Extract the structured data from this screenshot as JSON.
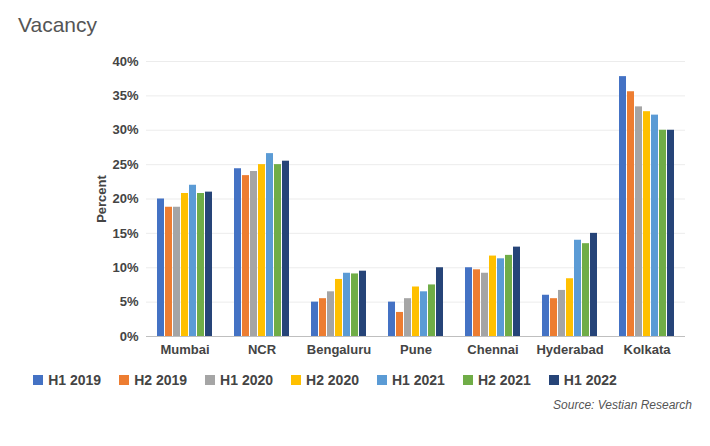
{
  "chart_data": {
    "type": "bar",
    "title": "Vacancy",
    "y_label": "Percent",
    "source": "Source: Vestian Research",
    "categories": [
      "Mumbai",
      "NCR",
      "Bengaluru",
      "Pune",
      "Chennai",
      "Hyderabad",
      "Kolkata"
    ],
    "series": [
      {
        "name": "H1 2019",
        "color": "#4472c4",
        "values": [
          20,
          24.4,
          5,
          5,
          10,
          6,
          37.8
        ]
      },
      {
        "name": "H2 2019",
        "color": "#ed7d31",
        "values": [
          18.8,
          23.4,
          5.5,
          3.5,
          9.7,
          5.5,
          35.6
        ]
      },
      {
        "name": "H1 2020",
        "color": "#a5a5a5",
        "values": [
          18.8,
          24,
          6.5,
          5.5,
          9.2,
          6.7,
          33.4
        ]
      },
      {
        "name": "H2 2020",
        "color": "#ffc000",
        "values": [
          20.8,
          25,
          8.3,
          7.2,
          11.7,
          8.4,
          32.7
        ]
      },
      {
        "name": "H1 2021",
        "color": "#5b9bd5",
        "values": [
          22,
          26.6,
          9.2,
          6.5,
          11.3,
          14,
          32.2
        ]
      },
      {
        "name": "H2 2021",
        "color": "#70ad47",
        "values": [
          20.8,
          25,
          9.1,
          7.5,
          11.8,
          13.5,
          30
        ]
      },
      {
        "name": "H1 2022",
        "color": "#264478",
        "values": [
          21,
          25.5,
          9.5,
          10,
          13,
          15,
          30
        ]
      }
    ],
    "ylim": [
      0,
      40
    ],
    "yticks": [
      {
        "value": 0,
        "label": "0%"
      },
      {
        "value": 5,
        "label": "5%"
      },
      {
        "value": 10,
        "label": "10%"
      },
      {
        "value": 15,
        "label": "15%"
      },
      {
        "value": 20,
        "label": "20%"
      },
      {
        "value": 25,
        "label": "25%"
      },
      {
        "value": 30,
        "label": "30%"
      },
      {
        "value": 35,
        "label": "35%"
      },
      {
        "value": 40,
        "label": "40%"
      }
    ],
    "grid": true,
    "legend": "bottom",
    "data_labels": false
  }
}
